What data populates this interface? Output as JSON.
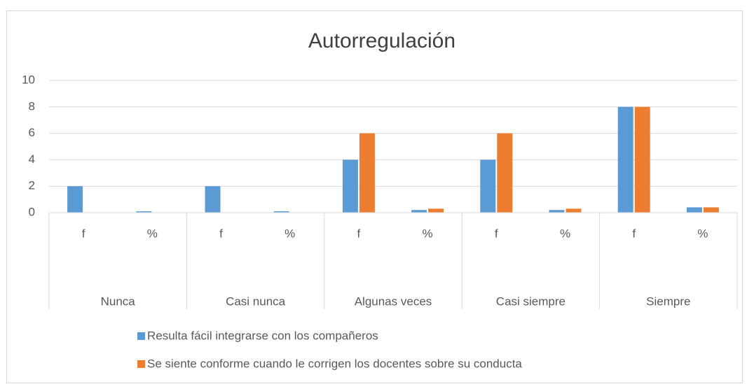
{
  "chart_data": {
    "type": "bar",
    "title": "Autorregulación",
    "categories": [
      "f",
      "%",
      "f",
      "%",
      "f",
      "%",
      "f",
      "%",
      "f",
      "%"
    ],
    "groups": [
      "Nunca",
      "Casi nunca",
      "Algunas veces",
      "Casi siempre",
      "Siempre"
    ],
    "series": [
      {
        "name": "Resulta fácil integrarse con los compañeros",
        "color": "#5b9bd5",
        "values": [
          2,
          0.1,
          2,
          0.1,
          4,
          0.2,
          4,
          0.2,
          8,
          0.4
        ]
      },
      {
        "name": "Se siente conforme cuando le corrigen los docentes sobre su conducta",
        "color": "#ed7d31",
        "values": [
          0,
          0,
          0,
          0,
          6,
          0.3,
          6,
          0.3,
          8,
          0.4
        ]
      }
    ],
    "ylim": [
      0,
      10
    ],
    "yticks": [
      0,
      2,
      4,
      6,
      8,
      10
    ],
    "grid": true,
    "legend": "bottom"
  }
}
